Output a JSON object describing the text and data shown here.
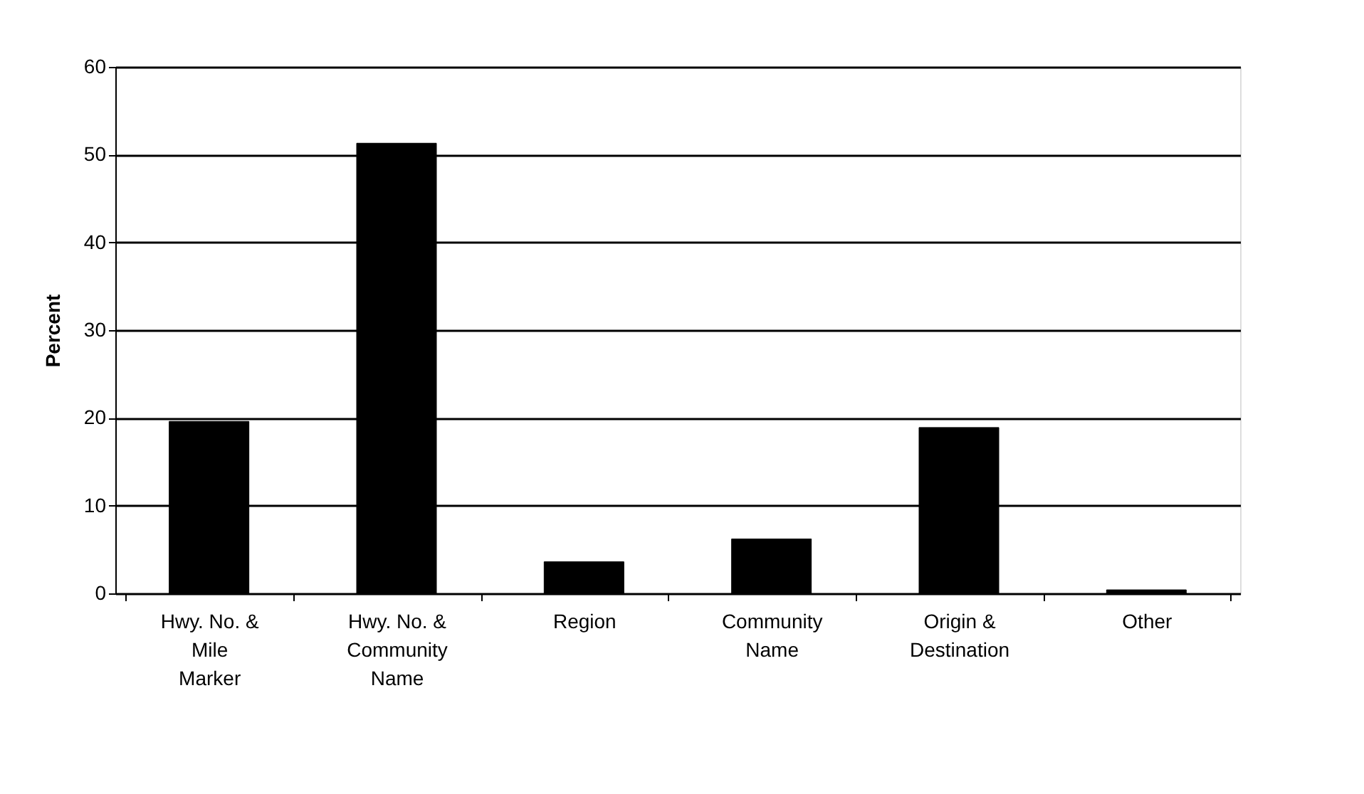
{
  "chart_data": {
    "type": "bar",
    "ylabel": "Percent",
    "categories": [
      "Hwy. No. & Mile Marker",
      "Hwy. No. & Community Name",
      "Region",
      "Community Name",
      "Origin & Destination",
      "Other"
    ],
    "values": [
      19.6,
      51.3,
      3.6,
      6.2,
      18.9,
      0.4
    ],
    "color": "#000000",
    "ylim": [
      0,
      60
    ],
    "yticks": [
      0,
      10,
      20,
      30,
      40,
      50,
      60
    ],
    "grid": "y"
  }
}
